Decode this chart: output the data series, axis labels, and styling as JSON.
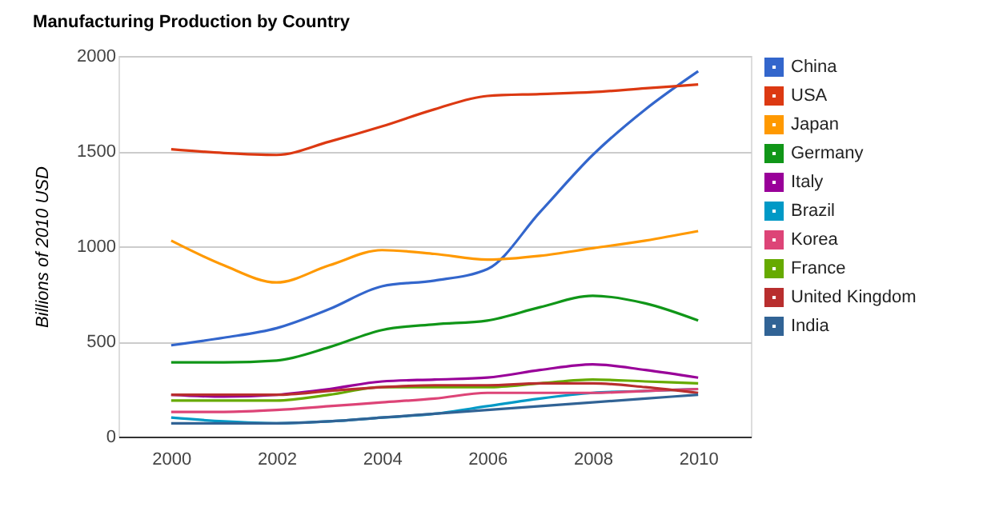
{
  "chart_data": {
    "type": "line",
    "title": "Manufacturing Production by Country",
    "ylabel": "Billions of 2010 USD",
    "x": [
      2000,
      2001,
      2002,
      2003,
      2004,
      2005,
      2006,
      2007,
      2008,
      2009,
      2010
    ],
    "xlim": [
      1999,
      2011
    ],
    "xticks": [
      2000,
      2002,
      2004,
      2006,
      2008,
      2010
    ],
    "ylim": [
      0,
      2000
    ],
    "yticks": [
      0,
      500,
      1000,
      1500,
      2000
    ],
    "grid": "y",
    "legend": "right",
    "marker": "none",
    "line_style": "solid",
    "series": [
      {
        "name": "China",
        "color": "#3366cc",
        "values": [
          480,
          520,
          570,
          670,
          790,
          820,
          880,
          1180,
          1480,
          1720,
          1920
        ]
      },
      {
        "name": "USA",
        "color": "#dc3912",
        "values": [
          1510,
          1490,
          1480,
          1550,
          1630,
          1720,
          1790,
          1800,
          1810,
          1830,
          1850
        ]
      },
      {
        "name": "Japan",
        "color": "#ff9900",
        "values": [
          1030,
          900,
          810,
          900,
          980,
          960,
          930,
          950,
          990,
          1030,
          1080
        ]
      },
      {
        "name": "Germany",
        "color": "#109618",
        "values": [
          390,
          390,
          400,
          470,
          560,
          590,
          610,
          680,
          740,
          700,
          610
        ]
      },
      {
        "name": "Italy",
        "color": "#990099",
        "values": [
          220,
          210,
          220,
          250,
          290,
          300,
          310,
          350,
          380,
          350,
          310
        ]
      },
      {
        "name": "Brazil",
        "color": "#0099c6",
        "values": [
          100,
          80,
          70,
          80,
          100,
          120,
          160,
          200,
          230,
          240,
          250
        ]
      },
      {
        "name": "Korea",
        "color": "#dd4477",
        "values": [
          130,
          130,
          140,
          160,
          180,
          200,
          230,
          230,
          230,
          240,
          250
        ]
      },
      {
        "name": "France",
        "color": "#66aa00",
        "values": [
          190,
          190,
          190,
          220,
          260,
          260,
          260,
          280,
          300,
          290,
          280
        ]
      },
      {
        "name": "United Kingdom",
        "color": "#b82e2e",
        "values": [
          220,
          220,
          220,
          240,
          260,
          270,
          270,
          280,
          280,
          260,
          230
        ]
      },
      {
        "name": "India",
        "color": "#316395",
        "values": [
          70,
          70,
          70,
          80,
          100,
          120,
          140,
          160,
          180,
          200,
          220
        ]
      }
    ]
  }
}
